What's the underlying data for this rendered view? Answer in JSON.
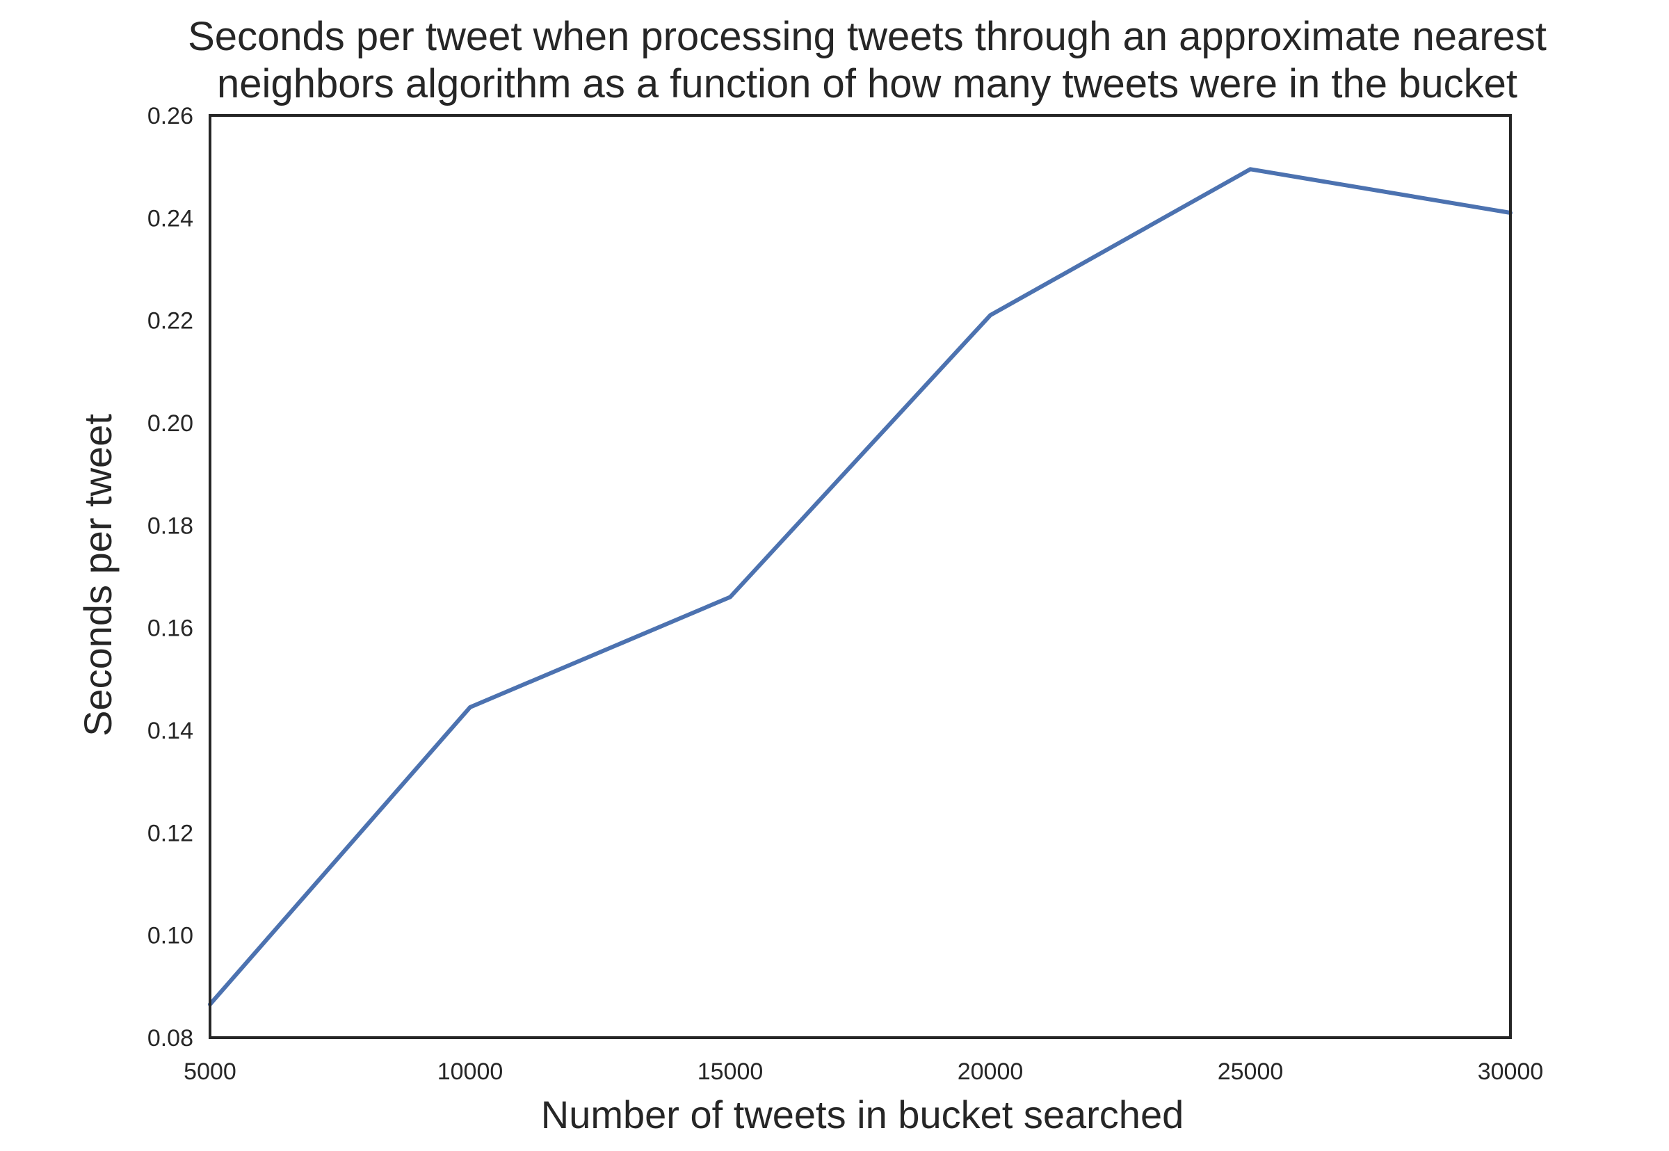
{
  "chart_data": {
    "type": "line",
    "title_lines": [
      "Seconds per tweet when processing tweets through an approximate nearest",
      "neighbors algorithm as a function of how many tweets were in the bucket"
    ],
    "xlabel": "Number of tweets in bucket searched",
    "ylabel": "Seconds per tweet",
    "xlim": [
      5000,
      30000
    ],
    "ylim": [
      0.08,
      0.26
    ],
    "xticks": [
      5000,
      10000,
      15000,
      20000,
      25000,
      30000
    ],
    "xtick_labels": [
      "5000",
      "10000",
      "15000",
      "20000",
      "25000",
      "30000"
    ],
    "yticks": [
      0.08,
      0.1,
      0.12,
      0.14,
      0.16,
      0.18,
      0.2,
      0.22,
      0.24,
      0.26
    ],
    "ytick_labels": [
      "0.08",
      "0.10",
      "0.12",
      "0.14",
      "0.16",
      "0.18",
      "0.20",
      "0.22",
      "0.24",
      "0.26"
    ],
    "grid": false,
    "series": [
      {
        "color": "#4c72b0",
        "x": [
          5000,
          10000,
          15000,
          20000,
          25000,
          30000
        ],
        "y": [
          0.0865,
          0.1445,
          0.166,
          0.221,
          0.2495,
          0.241
        ]
      }
    ],
    "frame_color": "#262626"
  }
}
